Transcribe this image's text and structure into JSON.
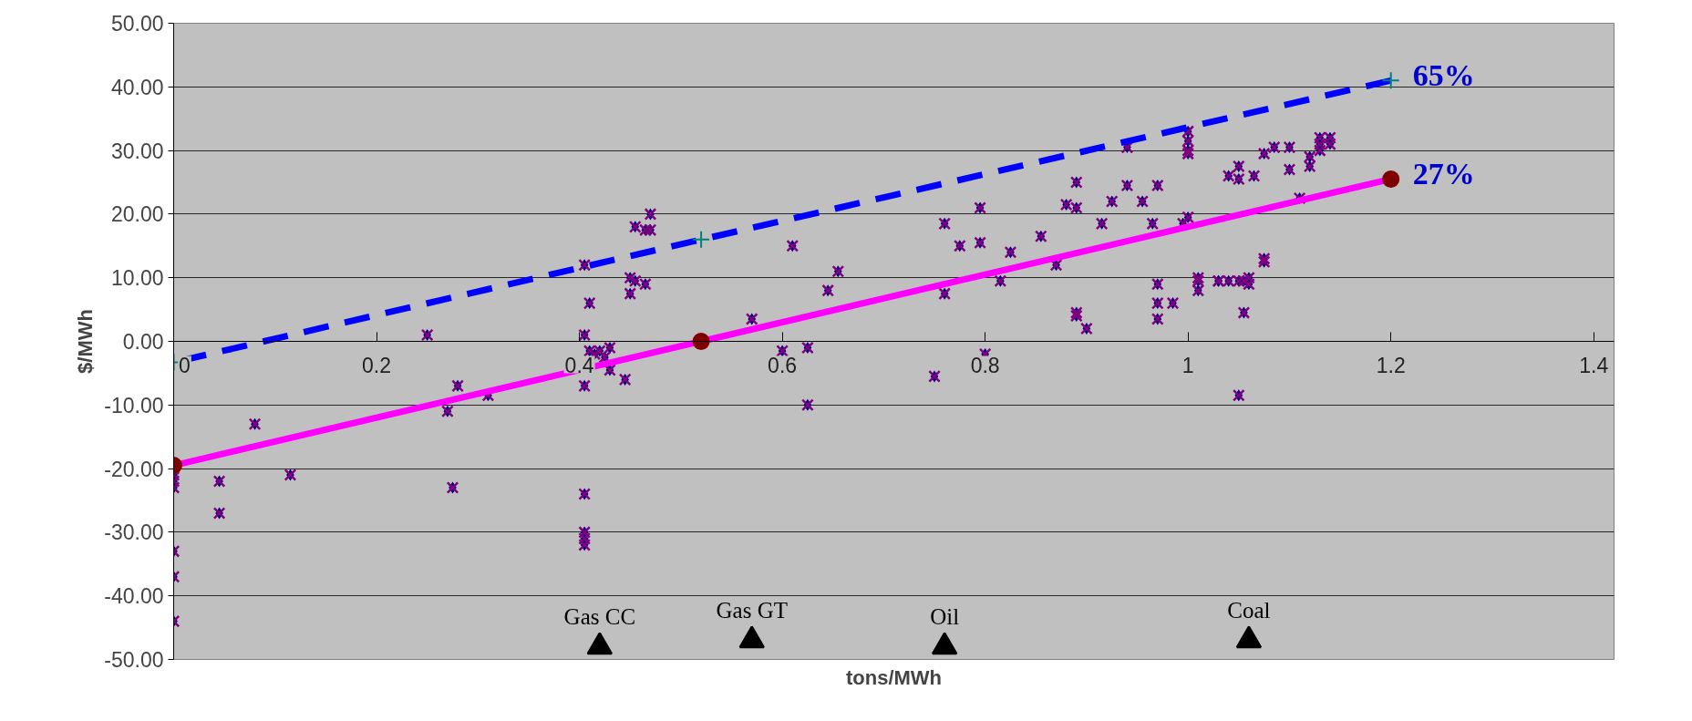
{
  "chart_data": {
    "type": "scatter",
    "xlabel": "tons/MWh",
    "ylabel": "$/MWh",
    "xlim": [
      0,
      1.42
    ],
    "ylim": [
      -50,
      50
    ],
    "xticks": [
      0,
      0.2,
      0.4,
      0.6,
      0.8,
      1,
      1.2,
      1.4
    ],
    "yticks": [
      {
        "value": -50,
        "label": "-50.00"
      },
      {
        "value": -40,
        "label": "-40.00"
      },
      {
        "value": -30,
        "label": "-30.00"
      },
      {
        "value": -20,
        "label": "-20.00"
      },
      {
        "value": -10,
        "label": "-10.00"
      },
      {
        "value": 0,
        "label": "0.00"
      },
      {
        "value": 10,
        "label": "10.00"
      },
      {
        "value": 20,
        "label": "20.00"
      },
      {
        "value": 30,
        "label": "30.00"
      },
      {
        "value": 40,
        "label": "40.00"
      },
      {
        "value": 50,
        "label": "50.00"
      }
    ],
    "grid": "y",
    "series": [
      {
        "type": "scatter",
        "marker": "cross",
        "color": "#800080",
        "x": [
          0,
          0,
          0,
          0,
          0,
          0,
          0,
          0.045,
          0.045,
          0.08,
          0.115,
          0.25,
          0.27,
          0.28,
          0.275,
          0.31,
          0.405,
          0.405,
          0.405,
          0.405,
          0.405,
          0.405,
          0.405,
          0.41,
          0.41,
          0.415,
          0.42,
          0.425,
          0.43,
          0.43,
          0.445,
          0.45,
          0.45,
          0.455,
          0.455,
          0.465,
          0.465,
          0.47,
          0.47,
          0.57,
          0.6,
          0.61,
          0.625,
          0.625,
          0.645,
          0.655,
          0.75,
          0.76,
          0.76,
          0.775,
          0.795,
          0.795,
          0.8,
          0.815,
          0.825,
          0.855,
          0.87,
          0.88,
          0.89,
          0.89,
          0.89,
          0.89,
          0.9,
          0.915,
          0.925,
          0.94,
          0.94,
          0.955,
          0.965,
          0.97,
          0.97,
          0.97,
          0.97,
          0.985,
          0.995,
          1.0,
          1.0,
          1.0,
          1.0,
          1.0,
          1.01,
          1.01,
          1.01,
          1.03,
          1.03,
          1.04,
          1.04,
          1.05,
          1.05,
          1.05,
          1.05,
          1.055,
          1.055,
          1.06,
          1.06,
          1.065,
          1.075,
          1.075,
          1.075,
          1.085,
          1.1,
          1.1,
          1.11,
          1.12,
          1.12,
          1.13,
          1.13,
          1.13,
          1.14,
          1.14
        ],
        "values": [
          -20,
          -21,
          -22,
          -23,
          -33,
          -37,
          -44,
          -22,
          -27,
          -13,
          -21,
          1,
          -11,
          -7,
          -23,
          -8.5,
          12,
          1,
          -7,
          -24,
          -30,
          -31,
          -32,
          6,
          -1.5,
          -2,
          -1.5,
          -2.5,
          -1,
          -4.5,
          -6,
          7.5,
          10,
          18,
          9.5,
          17.5,
          9,
          20,
          17.5,
          3.5,
          -1.5,
          15,
          -1,
          -10,
          8,
          11,
          -5.5,
          7.5,
          18.5,
          15,
          21,
          15.5,
          -2,
          9.5,
          14,
          16.5,
          12,
          21.5,
          21,
          25,
          4.5,
          4,
          2,
          18.5,
          22,
          30.5,
          24.5,
          22,
          18.5,
          24.5,
          9,
          6,
          3.5,
          6,
          18.5,
          19.5,
          33,
          31.5,
          30,
          29.5,
          8,
          9.5,
          10,
          9.5,
          9.5,
          26,
          9.5,
          27.5,
          25.5,
          9.5,
          -8.5,
          4.5,
          9.5,
          10,
          9,
          26,
          13,
          12.5,
          29.5,
          30.5,
          27,
          30.5,
          22.5,
          27.5,
          29,
          30,
          31,
          32,
          31,
          32
        ]
      },
      {
        "type": "line",
        "name": "65%",
        "color": "#0000ff",
        "line_style": "dashed",
        "marker": "cross",
        "x": [
          0,
          0.52,
          1.2
        ],
        "values": [
          -3.3,
          16,
          41
        ]
      },
      {
        "type": "line",
        "name": "27%",
        "color": "#ff00ff",
        "line_style": "solid",
        "marker": "circle",
        "x": [
          0,
          0.52,
          1.2
        ],
        "values": [
          -19.5,
          0,
          25.5
        ]
      },
      {
        "type": "scatter",
        "marker": "triangle",
        "color": "#000000",
        "x": [
          0.42,
          0.57,
          0.76,
          1.06
        ],
        "values": [
          -48,
          -47,
          -48,
          -47
        ]
      }
    ],
    "annotations": [
      "Gas CC",
      "Gas GT",
      "Oil",
      "Coal"
    ]
  }
}
